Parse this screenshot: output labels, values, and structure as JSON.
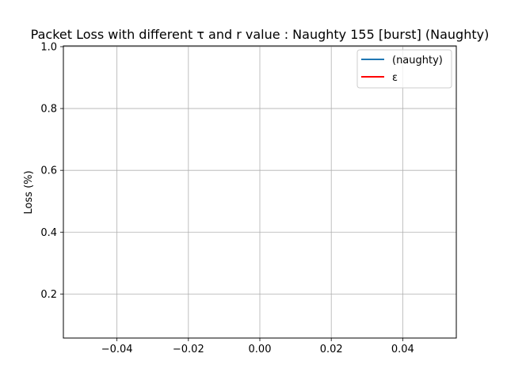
{
  "chart_data": {
    "type": "line",
    "title": "Packet Loss with different τ and r value : Naughty 155 [burst] (Naughty)",
    "xlabel": "",
    "ylabel": "Loss (%)",
    "xlim": [
      -0.055,
      0.055
    ],
    "ylim": [
      0.0575,
      1.0025
    ],
    "x_ticks": [
      -0.04,
      -0.02,
      0.0,
      0.02,
      0.04
    ],
    "x_tick_labels": [
      "−0.04",
      "−0.02",
      "0.00",
      "0.02",
      "0.04"
    ],
    "y_ticks": [
      0.2,
      0.4,
      0.6,
      0.8,
      1.0
    ],
    "y_tick_labels": [
      "0.2",
      "0.4",
      "0.6",
      "0.8",
      "1.0"
    ],
    "grid": true,
    "legend_position": "top-right",
    "series": [
      {
        "name": "(naughty)",
        "color": "#1f77b4",
        "x": [],
        "y": []
      },
      {
        "name": "ε",
        "color": "#ff0000",
        "x": [],
        "y": []
      }
    ]
  }
}
